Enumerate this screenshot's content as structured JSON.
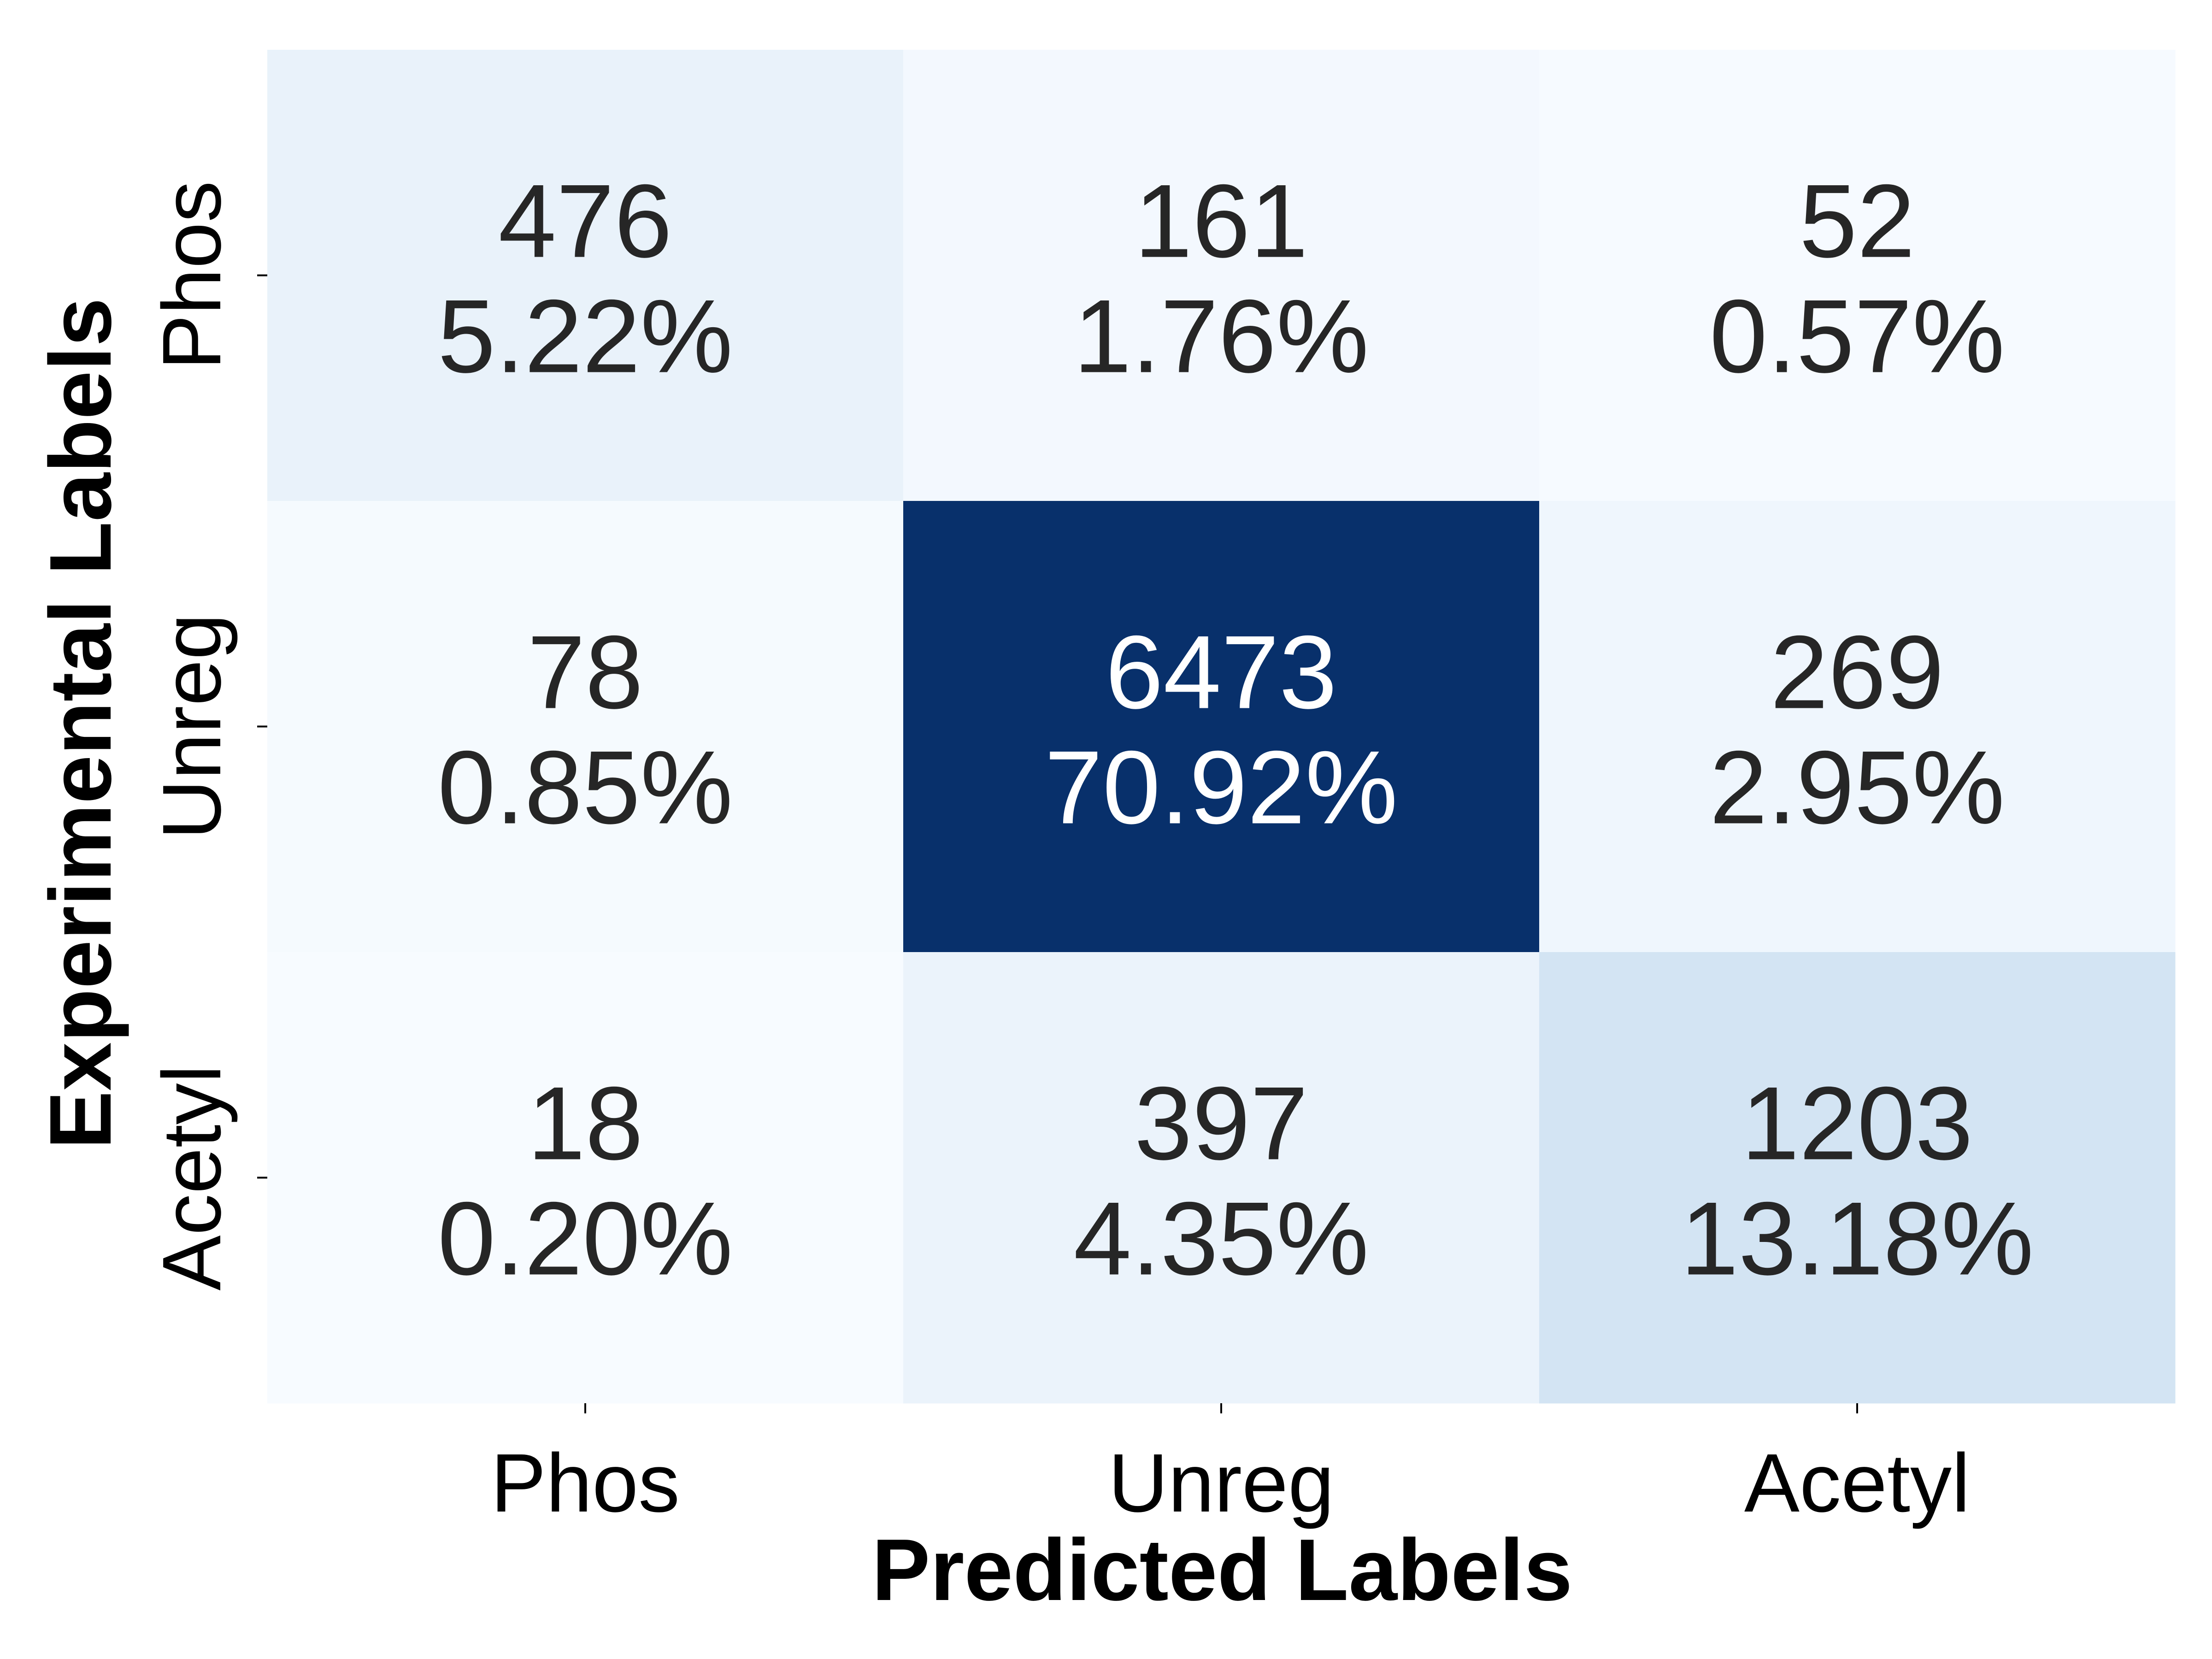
{
  "chart_data": {
    "type": "heatmap",
    "title": "",
    "xlabel": "Predicted Labels",
    "ylabel": "Experimental Labels",
    "x_categories": [
      "Phos",
      "Unreg",
      "Acetyl"
    ],
    "y_categories": [
      "Phos",
      "Unreg",
      "Acetyl"
    ],
    "values": [
      [
        476,
        161,
        52
      ],
      [
        78,
        6473,
        269
      ],
      [
        18,
        397,
        1203
      ]
    ],
    "percent_labels": [
      [
        "5.22%",
        "1.76%",
        "0.57%"
      ],
      [
        "0.85%",
        "70.92%",
        "2.95%"
      ],
      [
        "0.20%",
        "4.35%",
        "13.18%"
      ]
    ],
    "colormap": "Blues",
    "color_range": [
      18,
      6473
    ],
    "dark_text_color": "#262626",
    "light_text_color": "#ffffff",
    "colorbar": false
  }
}
